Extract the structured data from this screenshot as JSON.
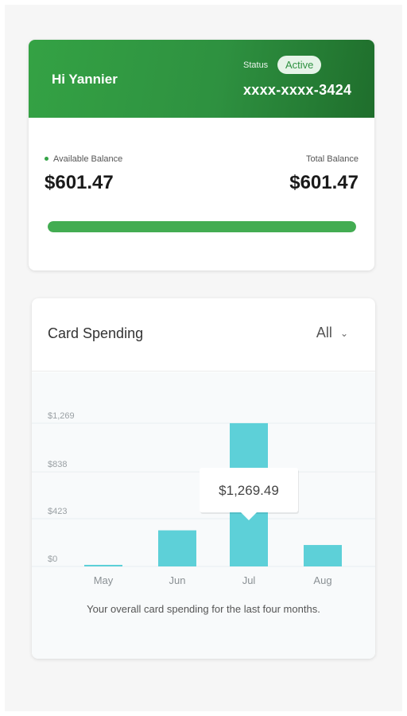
{
  "header": {
    "greeting": "Hi Yannier",
    "status_label": "Status",
    "status_value": "Active",
    "card_number": "xxxx-xxxx-3424"
  },
  "balance": {
    "available_label": "Available Balance",
    "available_value": "$601.47",
    "total_label": "Total Balance",
    "total_value": "$601.47",
    "progress": 1.0
  },
  "spending": {
    "title": "Card Spending",
    "filter_value": "All",
    "caption": "Your overall card spending for the last four months."
  },
  "colors": {
    "brand_green": "#2e9140",
    "progress_green": "#43ac52",
    "bar_cyan": "#5dd0d8"
  },
  "chart_data": {
    "type": "bar",
    "categories": [
      "May",
      "Jun",
      "Jul",
      "Aug"
    ],
    "values": [
      10,
      320,
      1269.49,
      190
    ],
    "ylim": [
      0,
      1269
    ],
    "yticks": [
      0,
      423,
      838,
      1269
    ],
    "ytick_labels": [
      "$0",
      "$423",
      "$838",
      "$1,269"
    ],
    "tooltip": {
      "category": "Jul",
      "label": "$1,269.49"
    },
    "grid": true
  }
}
